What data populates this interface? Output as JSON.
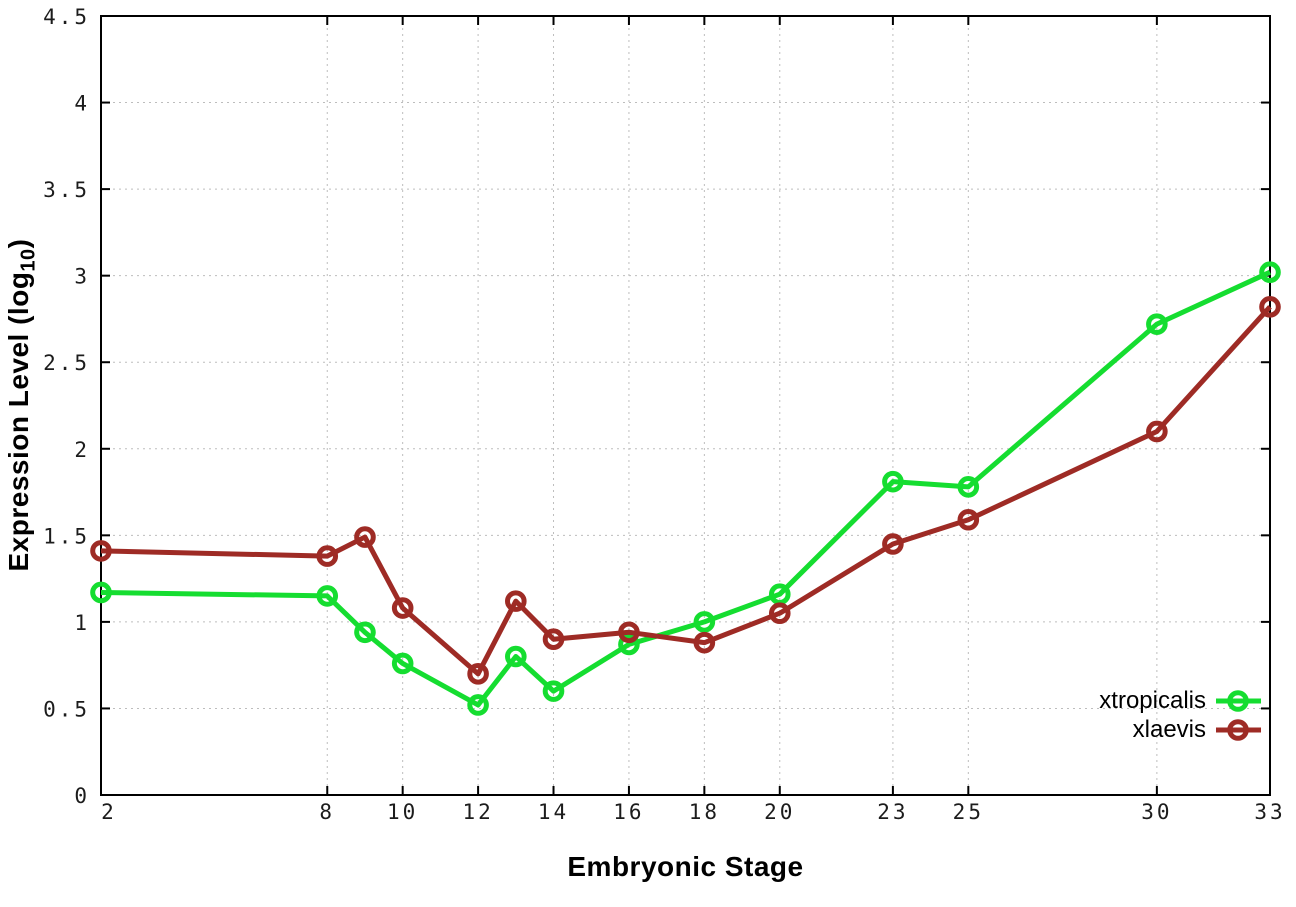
{
  "chart_data": {
    "type": "line",
    "title": "",
    "xlabel": "Embryonic Stage",
    "ylabel": "Expression Level (log10)",
    "ylabel_parts": {
      "pre": "Expression Level (log",
      "sub": "10",
      "post": ")"
    },
    "x": [
      2,
      8,
      9,
      10,
      12,
      13,
      14,
      16,
      18,
      20,
      23,
      25,
      30,
      33
    ],
    "series": [
      {
        "name": "xtropicalis",
        "color": "#15dd30",
        "marker": "open-circle",
        "values": [
          1.17,
          1.15,
          0.94,
          0.76,
          0.52,
          0.8,
          0.6,
          0.87,
          1.0,
          1.16,
          1.81,
          1.78,
          2.72,
          3.02
        ]
      },
      {
        "name": "xlaevis",
        "color": "#9e2b25",
        "marker": "open-circle",
        "values": [
          1.41,
          1.38,
          1.49,
          1.08,
          0.7,
          1.12,
          0.9,
          0.94,
          0.88,
          1.05,
          1.45,
          1.59,
          2.1,
          2.82
        ]
      }
    ],
    "x_ticks": [
      2,
      8,
      10,
      12,
      14,
      16,
      18,
      20,
      23,
      25,
      30,
      33
    ],
    "y_ticks": [
      0,
      0.5,
      1,
      1.5,
      2,
      2.5,
      3,
      3.5,
      4,
      4.5
    ],
    "y_tick_labels": [
      "0",
      "0.5",
      "1",
      "1.5",
      "2",
      "2.5",
      "3",
      "3.5",
      "4",
      "4.5"
    ],
    "xlim": [
      2,
      33
    ],
    "ylim": [
      0,
      4.5
    ],
    "grid": true,
    "grid_style": "dotted",
    "legend_position": "inside-bottom-right",
    "colors": {
      "background": "#ffffff",
      "border": "#000000",
      "grid": "#bdbdbd",
      "tick_text": "#1c1c1c"
    }
  }
}
